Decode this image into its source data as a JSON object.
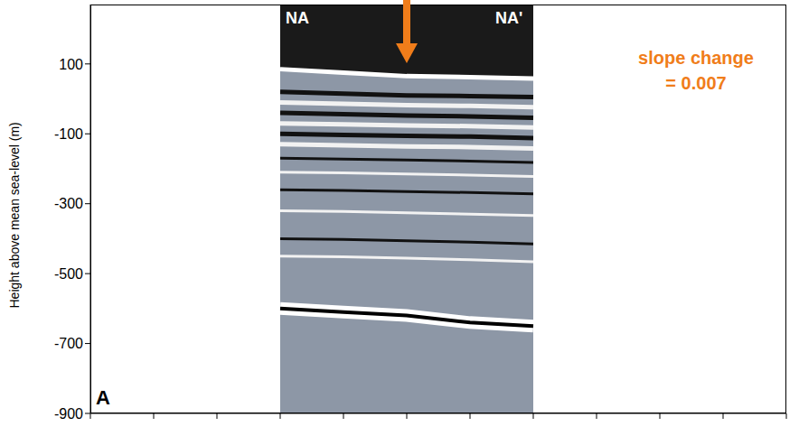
{
  "chart_data": {
    "type": "radargram",
    "panel": "A",
    "ylabel": "Height above mean sea-level (m)",
    "labels": [
      "NA",
      "NA'"
    ],
    "annotation": {
      "text": "slope change = 0.007",
      "color": "#f07d1a"
    },
    "categories": [
      null,
      null,
      null,
      null,
      null,
      null,
      null,
      null,
      null,
      null,
      null,
      null
    ],
    "ylim": [
      -900,
      270
    ],
    "yticks": [
      100,
      -100,
      -300,
      -500,
      -700,
      -900
    ],
    "tick_labels": "y",
    "grid": false,
    "surface": [
      null,
      null,
      null,
      85,
      75,
      65,
      62,
      58,
      null,
      null,
      null,
      null
    ],
    "bed": [
      null,
      null,
      null,
      -600,
      -610,
      -620,
      -640,
      -650,
      null,
      null,
      null,
      null
    ],
    "layers": [
      [
        null,
        null,
        null,
        20,
        15,
        10,
        8,
        5,
        null,
        null,
        null,
        null
      ],
      [
        null,
        null,
        null,
        -10,
        -14,
        -18,
        -20,
        -24,
        null,
        null,
        null,
        null
      ],
      [
        null,
        null,
        null,
        -40,
        -44,
        -48,
        -50,
        -54,
        null,
        null,
        null,
        null
      ],
      [
        null,
        null,
        null,
        -70,
        -73,
        -76,
        -78,
        -82,
        null,
        null,
        null,
        null
      ],
      [
        null,
        null,
        null,
        -100,
        -103,
        -106,
        -108,
        -112,
        null,
        null,
        null,
        null
      ],
      [
        null,
        null,
        null,
        -130,
        -133,
        -136,
        -138,
        -142,
        null,
        null,
        null,
        null
      ],
      [
        null,
        null,
        null,
        -170,
        -172,
        -175,
        -178,
        -182,
        null,
        null,
        null,
        null
      ],
      [
        null,
        null,
        null,
        -210,
        -212,
        -215,
        -218,
        -222,
        null,
        null,
        null,
        null
      ],
      [
        null,
        null,
        null,
        -260,
        -262,
        -265,
        -268,
        -272,
        null,
        null,
        null,
        null
      ],
      [
        null,
        null,
        null,
        -320,
        -322,
        -326,
        -330,
        -334,
        null,
        null,
        null,
        null
      ],
      [
        null,
        null,
        null,
        -400,
        -402,
        -406,
        -410,
        -415,
        null,
        null,
        null,
        null
      ],
      [
        null,
        null,
        null,
        -450,
        -452,
        -456,
        -460,
        -466,
        null,
        null,
        null,
        null
      ]
    ]
  }
}
